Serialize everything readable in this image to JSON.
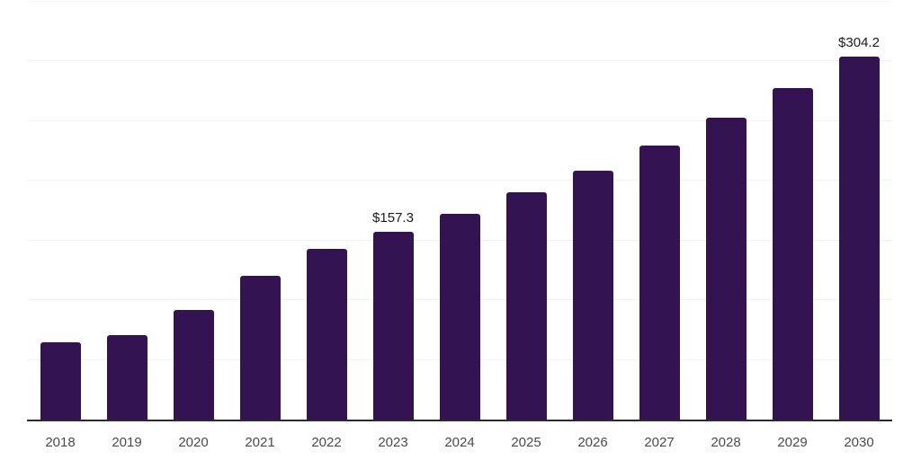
{
  "chart_data": {
    "type": "bar",
    "title": "",
    "xlabel": "",
    "ylabel": "",
    "categories": [
      "2018",
      "2019",
      "2020",
      "2021",
      "2022",
      "2023",
      "2024",
      "2025",
      "2026",
      "2027",
      "2028",
      "2029",
      "2030"
    ],
    "values": [
      64.5,
      70.5,
      92.2,
      120.7,
      143.2,
      157.3,
      172.4,
      190.4,
      208.4,
      229.4,
      252.6,
      278.1,
      304.2
    ],
    "data_labels": [
      {
        "category": "2023",
        "text": "$157.3"
      },
      {
        "category": "2030",
        "text": "$304.2"
      }
    ],
    "ylim": [
      0,
      350
    ],
    "gridline_values": [
      50,
      100,
      150,
      200,
      250,
      300,
      350
    ],
    "grid": "horizontal",
    "legend": "none",
    "colors": {
      "bar": "#341352",
      "axis_line": "#2b2b2b",
      "gridline": "#f2f2f2",
      "tick_label": "#4a4a4a",
      "data_label": "#1a1a1a",
      "background": "#ffffff"
    }
  }
}
